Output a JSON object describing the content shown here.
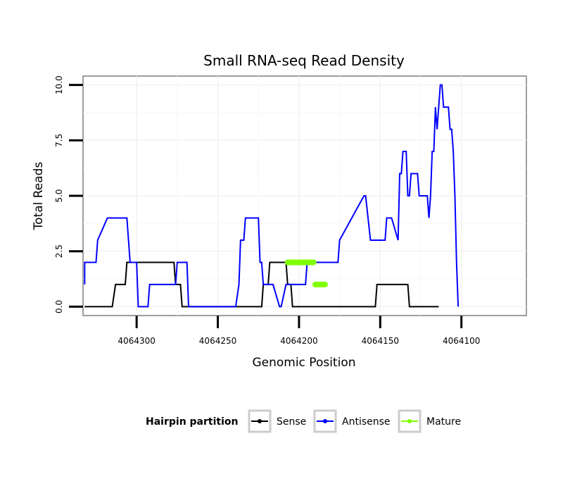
{
  "chart_data": {
    "type": "line",
    "title": "Small RNA-seq Read Density",
    "xlabel": "Genomic Position",
    "ylabel": "Total Reads",
    "x_reversed": true,
    "xlim": [
      4064333,
      4064060
    ],
    "ylim": [
      -0.4,
      10.4
    ],
    "x_ticks": [
      4064300,
      4064250,
      4064200,
      4064150,
      4064100
    ],
    "x_tick_labels": [
      "4064300",
      "4064250",
      "4064200",
      "4064150",
      "4064100"
    ],
    "y_ticks": [
      0,
      2.5,
      5,
      7.5,
      10
    ],
    "y_tick_labels": [
      "0.0",
      "2.5",
      "5.0",
      "7.5",
      "10.0"
    ],
    "grid": true,
    "legend": {
      "title": "Hairpin partition",
      "position": "bottom",
      "entries": [
        {
          "label": "Sense",
          "color": "#000000"
        },
        {
          "label": "Antisense",
          "color": "#0000ff"
        },
        {
          "label": "Mature",
          "color": "#7fff00"
        }
      ]
    },
    "series": [
      {
        "name": "Sense",
        "color": "#000000",
        "x": [
          4064332,
          4064315,
          4064313,
          4064307,
          4064306,
          4064293,
          4064292,
          4064277,
          4064276,
          4064273,
          4064272,
          4064223,
          4064222,
          4064219,
          4064218,
          4064208,
          4064207,
          4064205,
          4064204,
          4064153,
          4064152,
          4064133,
          4064132,
          4064114
        ],
        "values": [
          0,
          0,
          1,
          1,
          2,
          2,
          2,
          2,
          1,
          1,
          0,
          0,
          1,
          1,
          2,
          2,
          1,
          1,
          0,
          0,
          1,
          1,
          0,
          0
        ]
      },
      {
        "name": "Antisense",
        "color": "#0000ff",
        "x": [
          4064332,
          4064332,
          4064328,
          4064325,
          4064324,
          4064318,
          4064312,
          4064311,
          4064306,
          4064305,
          4064304,
          4064300,
          4064299,
          4064298,
          4064293,
          4064292,
          4064276,
          4064275,
          4064269,
          4064268,
          4064265,
          4064264,
          4064239,
          4064237,
          4064236,
          4064234,
          4064233,
          4064231,
          4064230,
          4064225,
          4064224,
          4064223,
          4064222,
          4064216,
          4064212,
          4064211,
          4064208,
          4064206,
          4064205,
          4064196,
          4064195,
          4064176,
          4064175,
          4064160,
          4064159,
          4064156,
          4064155,
          4064147,
          4064146,
          4064143,
          4064139,
          4064138,
          4064137,
          4064136,
          4064134,
          4064133,
          4064132,
          4064131,
          4064130,
          4064127,
          4064126,
          4064122,
          4064121,
          4064120,
          4064119,
          4064118,
          4064117,
          4064116,
          4064115,
          4064114
        ],
        "values": [
          1,
          2,
          2,
          2,
          3,
          4,
          4,
          4,
          4,
          3,
          2,
          2,
          0,
          0,
          0,
          1,
          1,
          2,
          2,
          0,
          0,
          0,
          0,
          1,
          3,
          3,
          4,
          4,
          4,
          4,
          2,
          2,
          1,
          1,
          0,
          0,
          1,
          1,
          1,
          1,
          2,
          2,
          3,
          5,
          5,
          3,
          3,
          3,
          4,
          4,
          3,
          6,
          6,
          7,
          7,
          5,
          5,
          6,
          6,
          6,
          5,
          5,
          5,
          4,
          5,
          7,
          7,
          9,
          8,
          9
        ],
        "x_tail": [
          4064113,
          4064112,
          4064111,
          4064110,
          4064109,
          4064108,
          4064107,
          4064106,
          4064105,
          4064104,
          4064103,
          4064102
        ],
        "values_tail": [
          10,
          10,
          9,
          9,
          9,
          9,
          8,
          8,
          7,
          5,
          2,
          0
        ]
      },
      {
        "name": "Mature",
        "color": "#7fff00",
        "segments": [
          {
            "x": [
              4064207,
              4064191
            ],
            "values": [
              2,
              2
            ]
          },
          {
            "x": [
              4064190,
              4064184
            ],
            "values": [
              1,
              1
            ]
          }
        ]
      }
    ]
  }
}
